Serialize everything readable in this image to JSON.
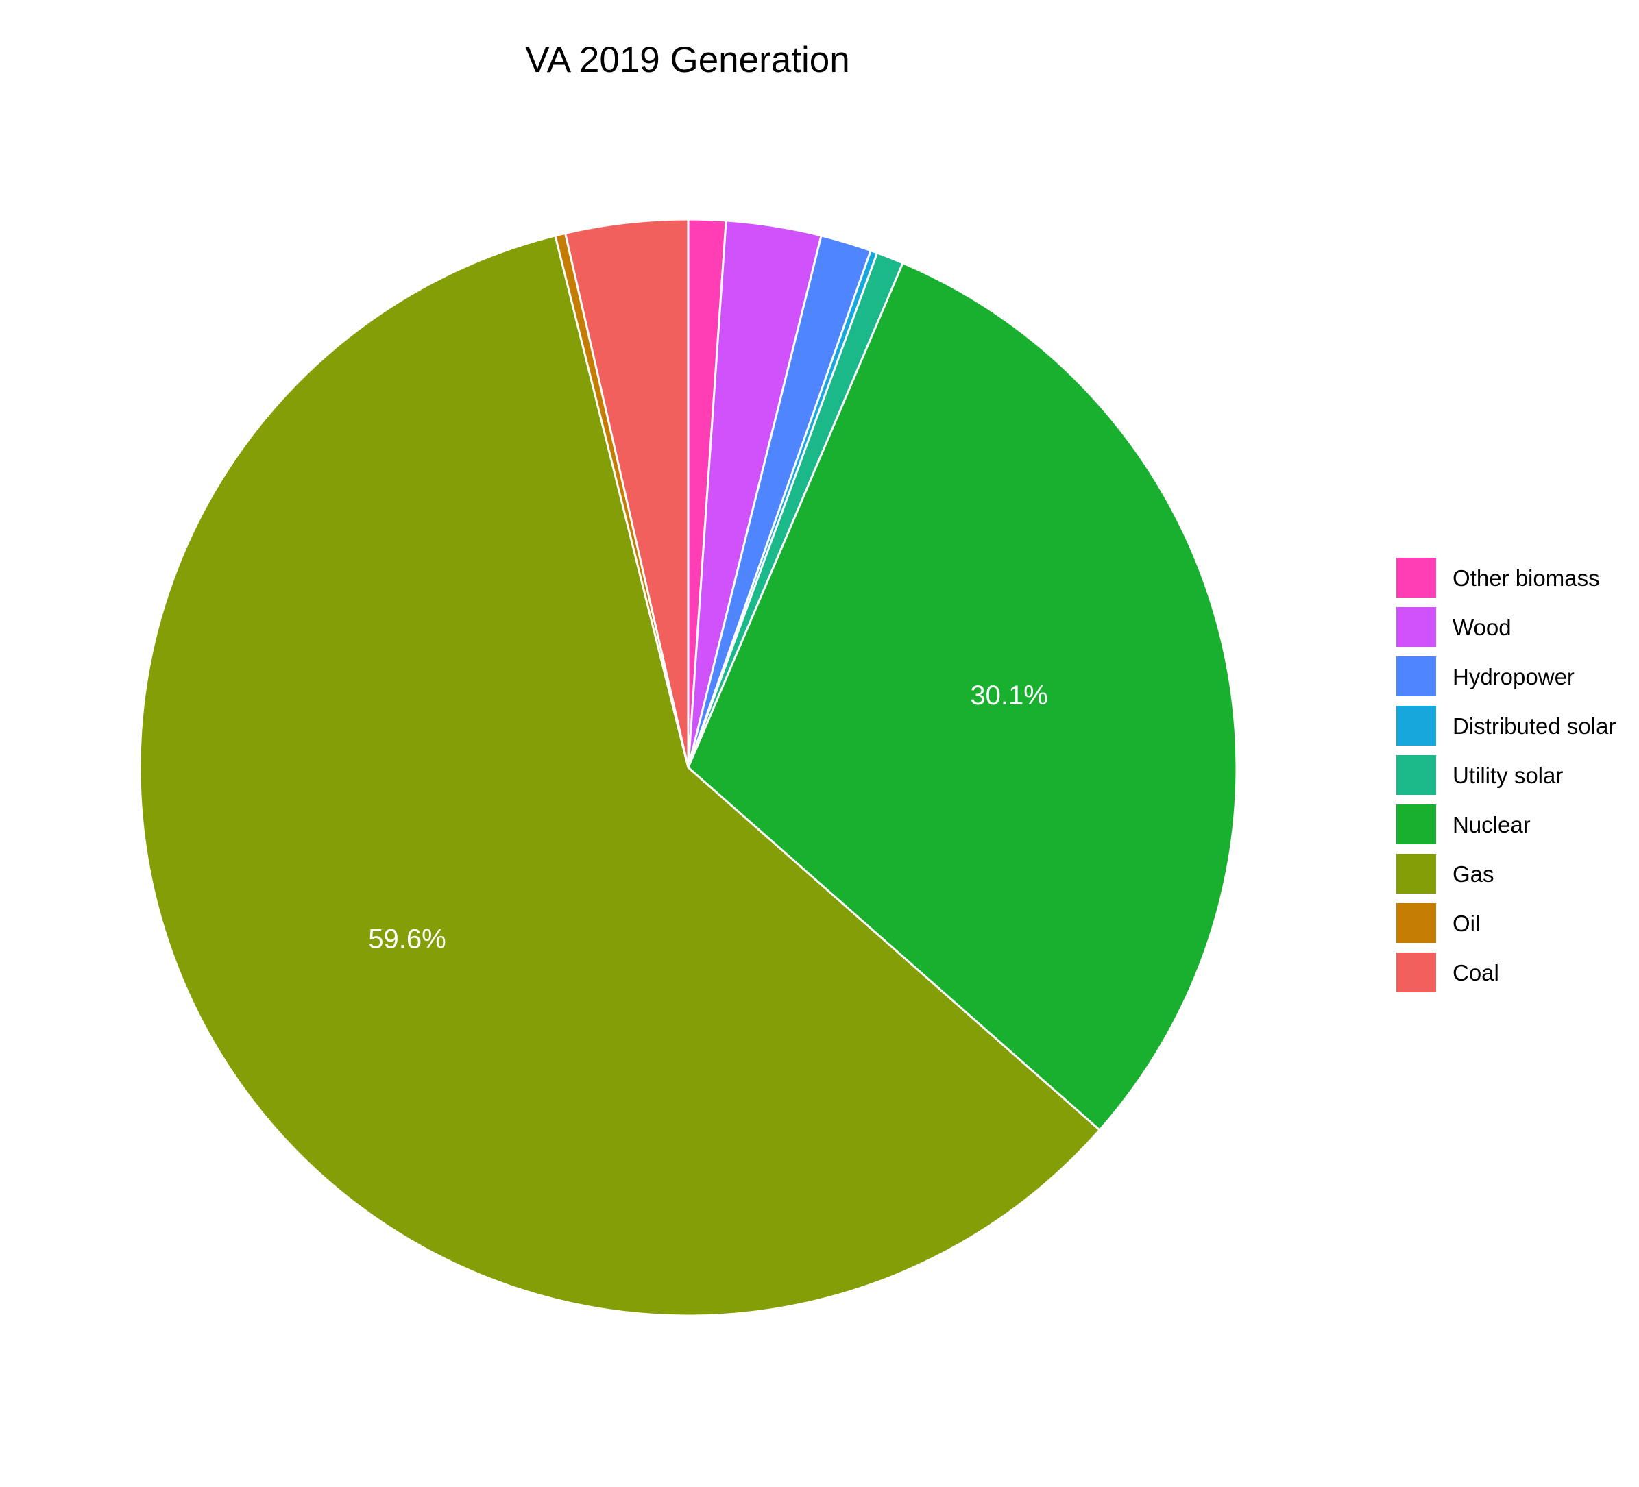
{
  "chart_data": {
    "type": "pie",
    "title": "VA 2019 Generation",
    "categories": [
      "Other biomass",
      "Wood",
      "Hydropower",
      "Distributed solar",
      "Utility solar",
      "Nuclear",
      "Gas",
      "Oil",
      "Coal"
    ],
    "values": [
      1.1,
      2.8,
      1.5,
      0.2,
      0.8,
      30.1,
      59.6,
      0.3,
      3.6
    ],
    "colors": [
      "#FF3EB5",
      "#D052FA",
      "#4F86FF",
      "#16A8DC",
      "#1BB88A",
      "#19B02F",
      "#849E07",
      "#C57C03",
      "#F2605E"
    ],
    "slice_labels": [
      {
        "category": "Nuclear",
        "text": "30.1%"
      },
      {
        "category": "Gas",
        "text": "59.6%"
      }
    ],
    "start": "top",
    "direction": "clockwise",
    "slice_border_color": "#ffffff",
    "legend": {
      "position": "right",
      "entries": [
        "Other biomass",
        "Wood",
        "Hydropower",
        "Distributed solar",
        "Utility solar",
        "Nuclear",
        "Gas",
        "Oil",
        "Coal"
      ]
    }
  }
}
